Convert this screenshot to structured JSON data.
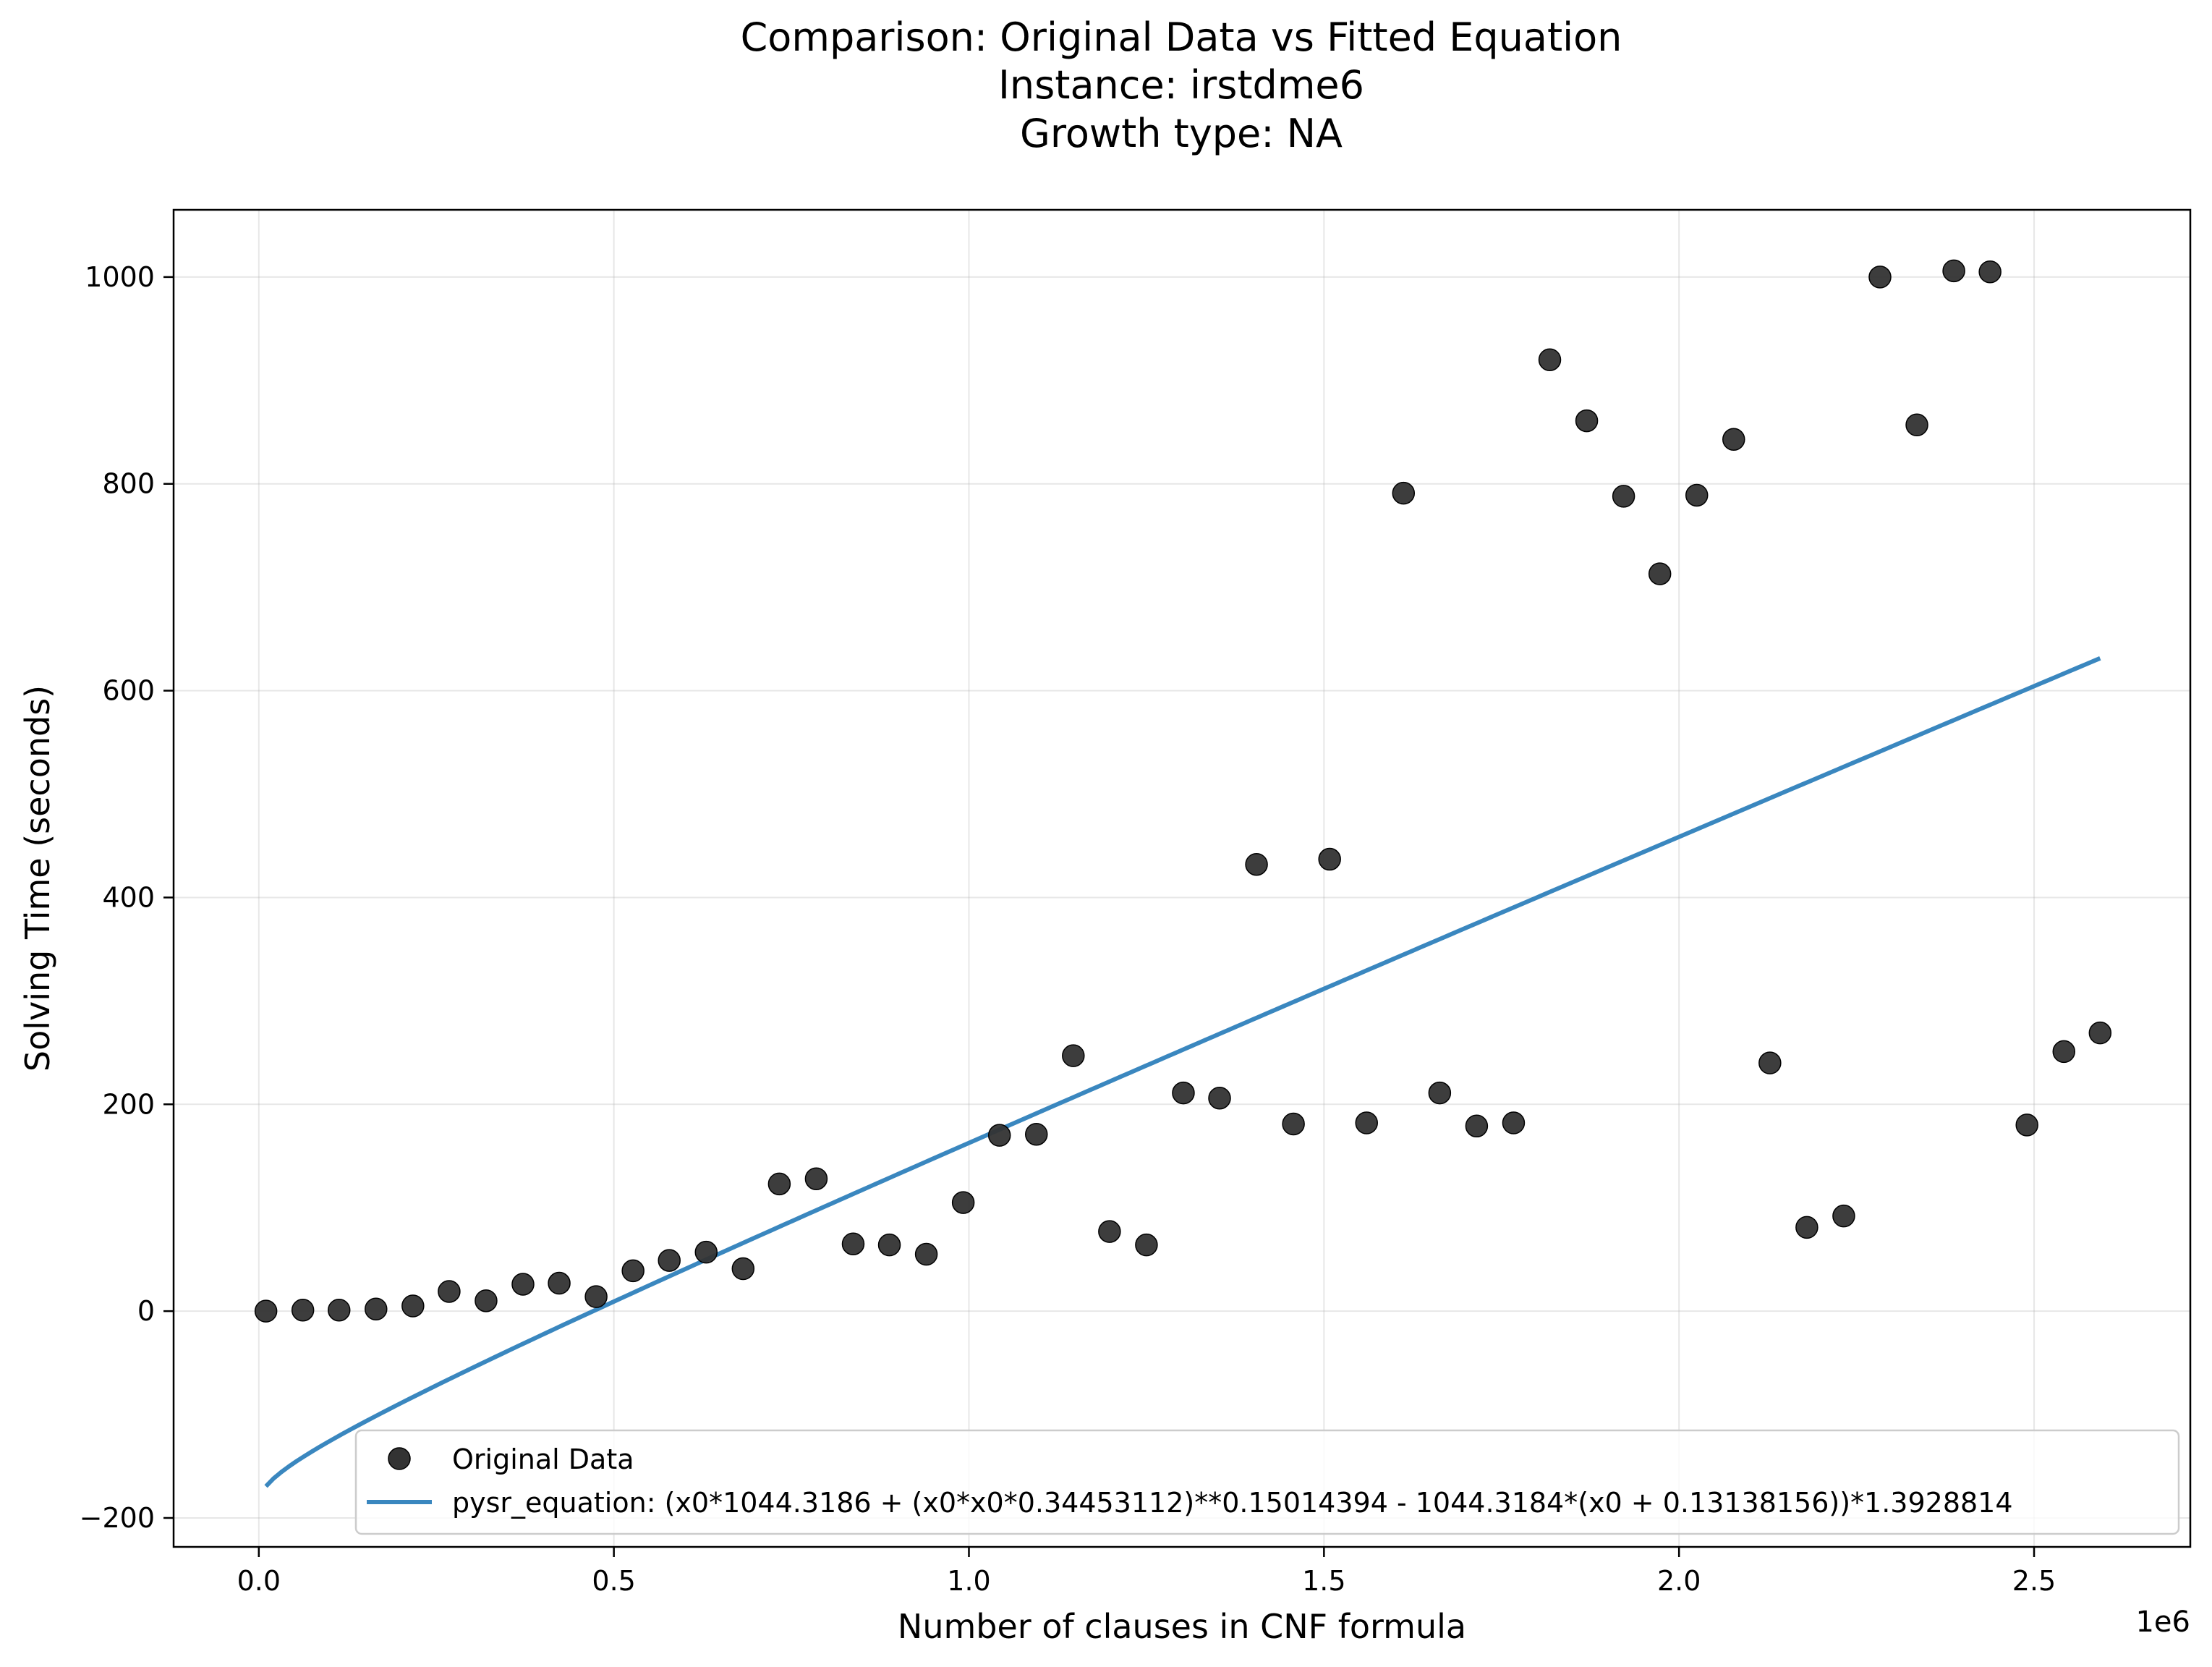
{
  "chart_data": {
    "type": "scatter",
    "title_lines": [
      "Comparison: Original Data vs Fitted Equation",
      "Instance: irstdme6",
      "Growth type: NA"
    ],
    "xlabel": "Number of clauses in CNF formula",
    "ylabel": "Solving Time (seconds)",
    "x_offset_label": "1e6",
    "xlim": [
      -0.12,
      2.72
    ],
    "ylim": [
      -228,
      1065
    ],
    "x_ticks": [
      0.0,
      0.5,
      1.0,
      1.5,
      2.0,
      2.5
    ],
    "x_tick_labels": [
      "0.0",
      "0.5",
      "1.0",
      "1.5",
      "2.0",
      "2.5"
    ],
    "y_ticks": [
      -200,
      0,
      200,
      400,
      600,
      800,
      1000
    ],
    "y_tick_labels": [
      "−200",
      "0",
      "200",
      "400",
      "600",
      "800",
      "1000"
    ],
    "grid": true,
    "legend_position": "lower right",
    "series": [
      {
        "name": "Original Data",
        "kind": "scatter",
        "color": "#333333",
        "x": [
          0.01,
          0.062,
          0.113,
          0.165,
          0.217,
          0.268,
          0.32,
          0.372,
          0.423,
          0.475,
          0.527,
          0.578,
          0.63,
          0.682,
          0.733,
          0.785,
          0.837,
          0.888,
          0.94,
          0.992,
          1.043,
          1.095,
          1.147,
          1.198,
          1.25,
          1.302,
          1.353,
          1.405,
          1.457,
          1.508,
          1.56,
          1.612,
          1.663,
          1.715,
          1.767,
          1.818,
          1.87,
          1.922,
          1.973,
          2.025,
          2.077,
          2.128,
          2.18,
          2.232,
          2.283,
          2.335,
          2.387,
          2.438,
          2.49,
          2.542,
          2.593
        ],
        "y": [
          0,
          1,
          1,
          2,
          5,
          19,
          10,
          26,
          27,
          14,
          39,
          49,
          57,
          41,
          123,
          128,
          65,
          64,
          55,
          105,
          170,
          171,
          247,
          77,
          64,
          211,
          206,
          432,
          181,
          437,
          182,
          791,
          211,
          179,
          182,
          920,
          861,
          788,
          713,
          789,
          843,
          240,
          81,
          92,
          1000,
          857,
          1006,
          1005,
          180,
          251,
          269
        ]
      },
      {
        "name": "pysr_equation: (x0*1044.3186 + (x0*x0*0.34453112)**0.15014394 - 1044.3184*(x0 + 0.13138156))*1.3928814",
        "kind": "line",
        "color": "#3a87bf",
        "equation": {
          "a": 1044.3186,
          "b": 0.34453112,
          "p": 0.15014394,
          "c": 1044.3184,
          "d": 0.13138156,
          "k": 1.3928814,
          "x_scale": 1000000,
          "x_range": [
            0.01,
            2.593
          ]
        }
      }
    ]
  }
}
